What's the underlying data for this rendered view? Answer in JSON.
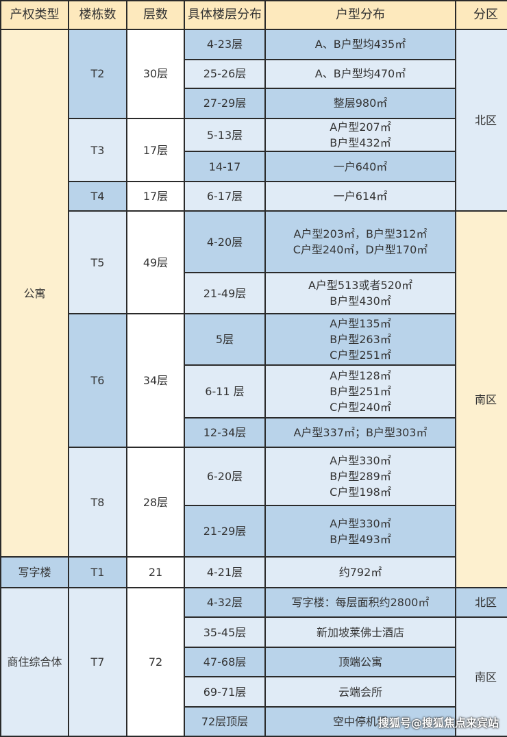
{
  "headers": [
    "产权类型",
    "楼栋数",
    "层数",
    "具体楼层分布",
    "户型分布",
    "分区"
  ],
  "colors": {
    "header": "#fde9bd",
    "cream": "#fdf0cf",
    "blue_dark": "#b9d3ea",
    "blue_light": "#e0ebf6"
  },
  "groups": [
    {
      "type": "公寓",
      "buildings": [
        {
          "name": "T2",
          "floors": "30层",
          "rows": [
            {
              "range": "4-23层",
              "layout": [
                "A、B户型均435㎡"
              ]
            },
            {
              "range": "25-26层",
              "layout": [
                "A、B户型均470㎡"
              ]
            },
            {
              "range": "27-29层",
              "layout": [
                "整层980㎡"
              ]
            }
          ]
        },
        {
          "name": "T3",
          "floors": "17层",
          "rows": [
            {
              "range": "5-13层",
              "layout": [
                "A户型207㎡",
                "B户型432㎡"
              ]
            },
            {
              "range": "14-17",
              "layout": [
                "一户640㎡"
              ]
            }
          ]
        },
        {
          "name": "T4",
          "floors": "17层",
          "rows": [
            {
              "range": "6-17层",
              "layout": [
                "一户614㎡"
              ]
            }
          ]
        },
        {
          "name": "T5",
          "floors": "49层",
          "rows": [
            {
              "range": "4-20层",
              "layout": [
                "A户型203㎡，B户型312㎡",
                "C户型240㎡，D户型170㎡"
              ]
            },
            {
              "range": "21-49层",
              "layout": [
                "A户型513或者520㎡",
                "B户型430㎡"
              ]
            }
          ]
        },
        {
          "name": "T6",
          "floors": "34层",
          "rows": [
            {
              "range": "5层",
              "layout": [
                "A户型135㎡",
                "B户型263㎡",
                "C户型251㎡"
              ]
            },
            {
              "range": "6-11 层",
              "layout": [
                "A户型128㎡",
                "B户型251㎡",
                "C户型240㎡"
              ]
            },
            {
              "range": "12-34层",
              "layout": [
                "A户型337㎡；B户型303㎡"
              ]
            }
          ]
        },
        {
          "name": "T8",
          "floors": "28层",
          "rows": [
            {
              "range": "6-20层",
              "layout": [
                "A户型330㎡",
                "B户型289㎡",
                "C户型198㎡"
              ]
            },
            {
              "range": "21-29层",
              "layout": [
                "A户型330㎡",
                "B户型493㎡"
              ]
            }
          ]
        }
      ]
    },
    {
      "type": "写字楼",
      "buildings": [
        {
          "name": "T1",
          "floors": "21",
          "rows": [
            {
              "range": "4-21层",
              "layout": [
                "约792㎡"
              ]
            }
          ]
        }
      ]
    },
    {
      "type": "商住综合体",
      "buildings": [
        {
          "name": "T7",
          "floors": "72",
          "rows": [
            {
              "range": "4-32层",
              "layout": [
                "写字楼：每层面积约2800㎡"
              ]
            },
            {
              "range": "35-45层",
              "layout": [
                "新加坡莱佛士酒店"
              ]
            },
            {
              "range": "47-68层",
              "layout": [
                "顶端公寓"
              ]
            },
            {
              "range": "69-71层",
              "layout": [
                "云端会所"
              ]
            },
            {
              "range": "72层顶层",
              "layout": [
                "空中停机坪"
              ]
            }
          ]
        }
      ]
    }
  ],
  "zones": [
    {
      "label": "北区",
      "rows": 6
    },
    {
      "label": "南区",
      "rows": 8
    },
    {
      "label": "北区",
      "rows": 1
    },
    {
      "label": "南区",
      "rows": 5
    }
  ],
  "watermark": "搜狐号@搜狐焦点来宾站"
}
